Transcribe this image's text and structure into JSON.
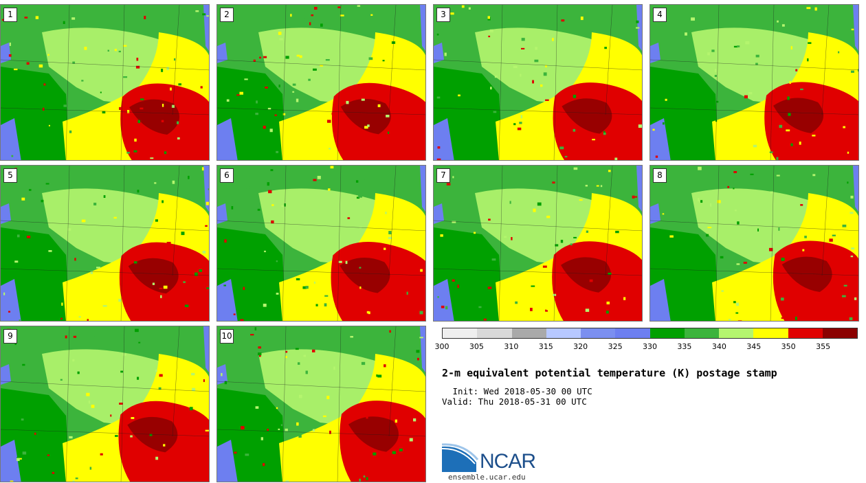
{
  "stamps": [
    {
      "label": "1"
    },
    {
      "label": "2"
    },
    {
      "label": "3"
    },
    {
      "label": "4"
    },
    {
      "label": "5"
    },
    {
      "label": "6"
    },
    {
      "label": "7"
    },
    {
      "label": "8"
    },
    {
      "label": "9"
    },
    {
      "label": "10"
    }
  ],
  "colorbar": {
    "colors": [
      "#efefef",
      "#d9d9d9",
      "#a9a9a9",
      "#b7c8ff",
      "#7b8ff0",
      "#6d7ff0",
      "#00a000",
      "#3cb43c",
      "#b4f56e",
      "#ffff00",
      "#e00000",
      "#8b0000"
    ],
    "ticks": [
      "300",
      "305",
      "310",
      "315",
      "320",
      "325",
      "330",
      "335",
      "340",
      "345",
      "350",
      "355"
    ]
  },
  "map_colors": {
    "dark_green": "#00a000",
    "green": "#3cb43c",
    "light_green": "#b4f56e",
    "yellow": "#ffff00",
    "red": "#e00000",
    "dark_red": "#8b0000",
    "blue": "#6d7ff0"
  },
  "title": "2-m equivalent potential temperature (K) postage stamp",
  "init_text": " Init: Wed 2018-05-30 00 UTC",
  "valid_text": "Valid: Thu 2018-05-31 00 UTC",
  "logo_text": "NCAR",
  "url": "ensemble.ucar.edu"
}
